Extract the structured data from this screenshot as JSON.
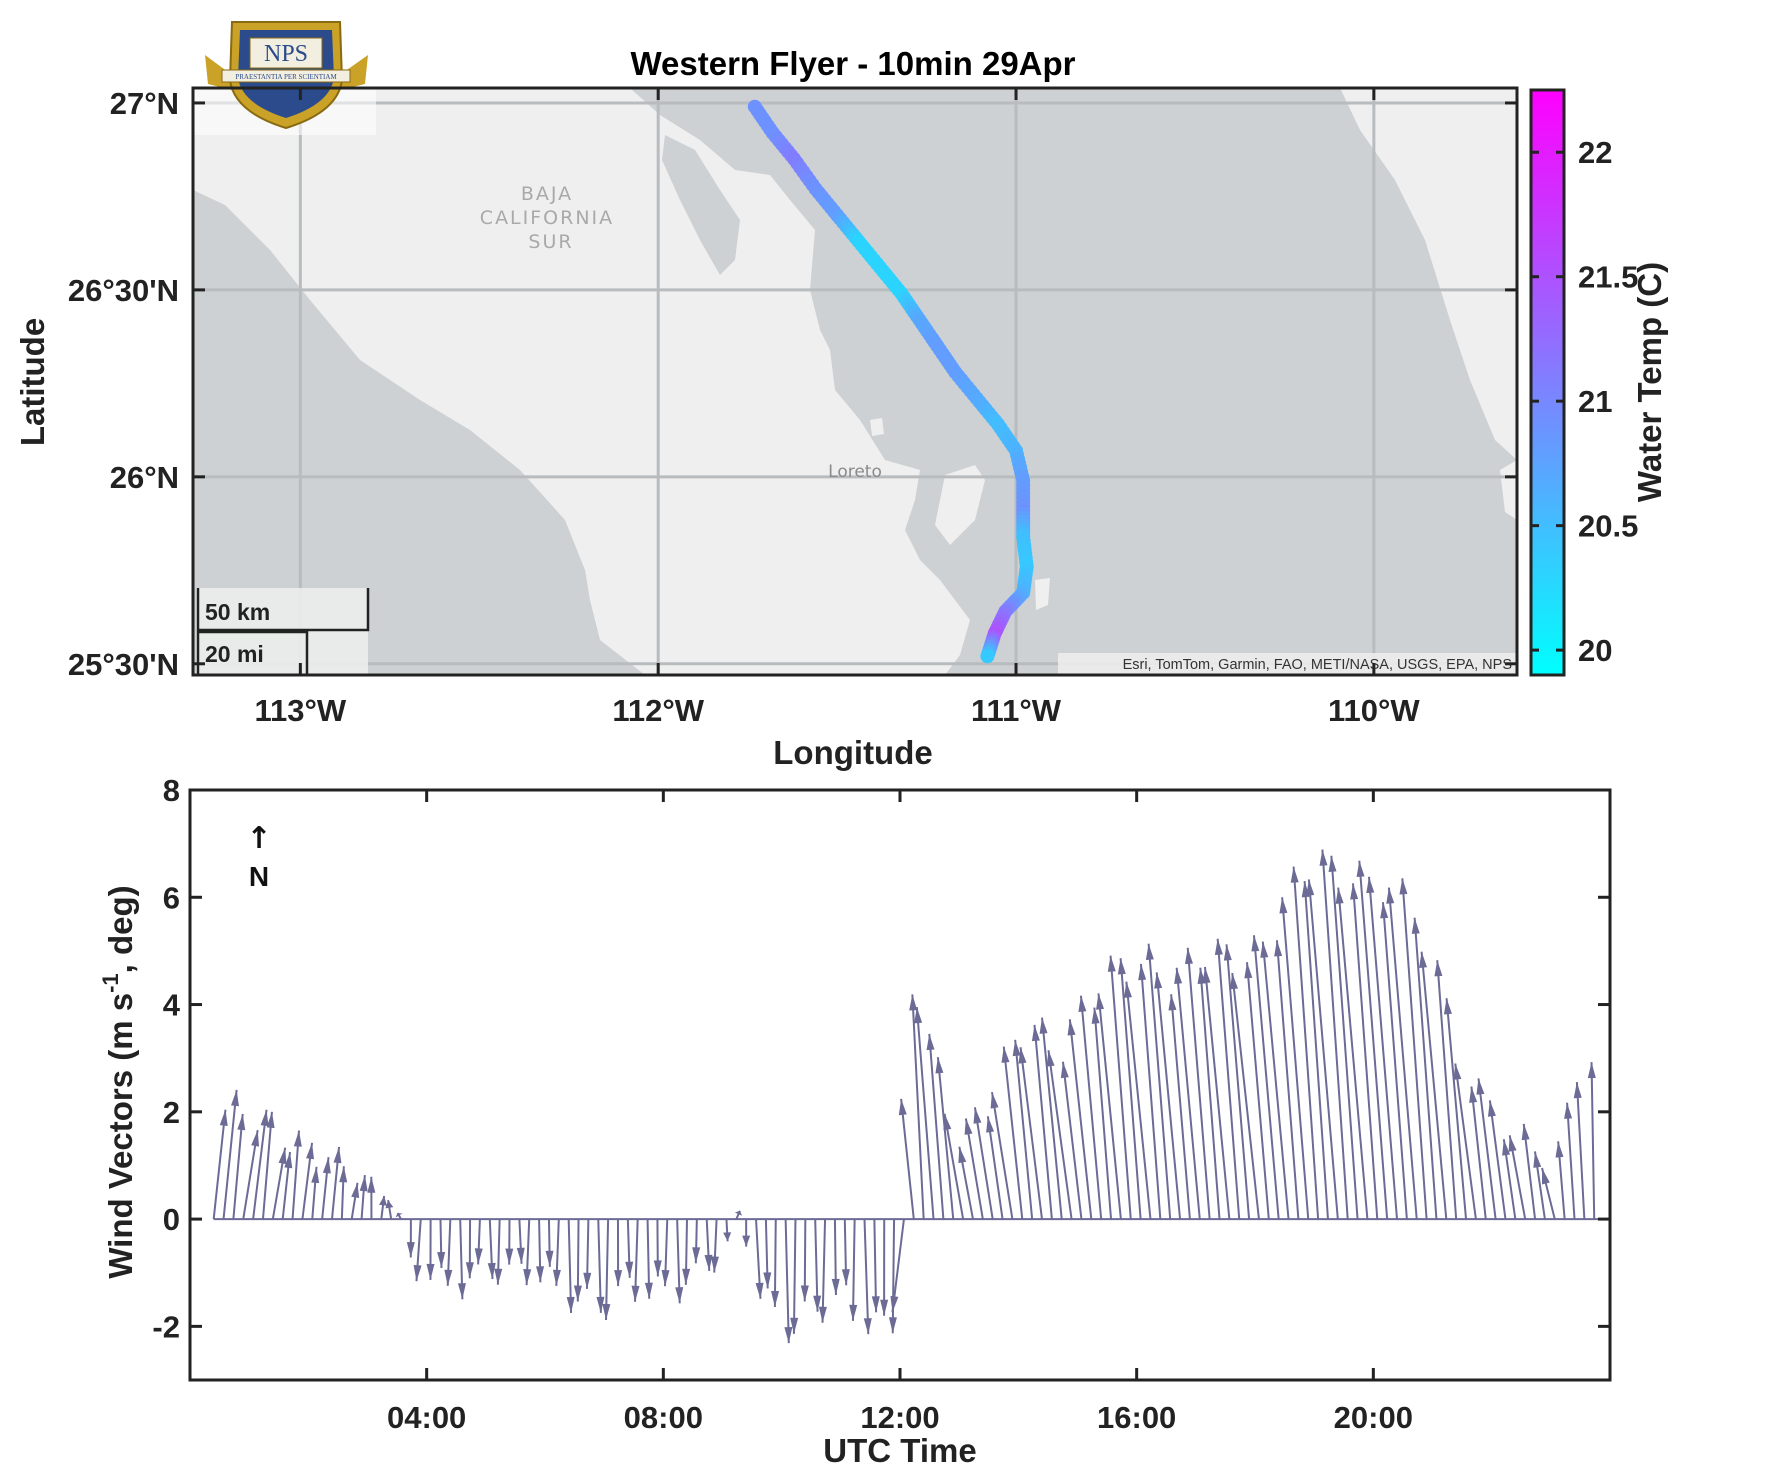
{
  "logo": {
    "text": "NPS",
    "motto": "PRAESTANTIA PER SCIENTIAM"
  },
  "colors": {
    "track_low": "#00FFFF",
    "track_high": "#FF00FF",
    "water": "#cdd1d3",
    "land": "#efefef",
    "wind_vector": "#6b6b96"
  },
  "chart_data": [
    {
      "type": "scatter",
      "title": "Western Flyer - 10min 29Apr",
      "xlabel": "Longitude",
      "ylabel": "Latitude",
      "xlim": [
        -113.3,
        -109.6
      ],
      "ylim": [
        25.47,
        27.04
      ],
      "x_ticks": [
        {
          "value": -113,
          "label": "113°W"
        },
        {
          "value": -112,
          "label": "112°W"
        },
        {
          "value": -111,
          "label": "111°W"
        },
        {
          "value": -110,
          "label": "110°W"
        }
      ],
      "y_ticks": [
        {
          "value": 27,
          "label": "27°N"
        },
        {
          "value": 26.5,
          "label": "26°30'N"
        },
        {
          "value": 26,
          "label": "26°N"
        },
        {
          "value": 25.5,
          "label": "25°30'N"
        }
      ],
      "grid": true,
      "track": [
        {
          "lon": -111.73,
          "lat": 26.99,
          "temp": 20.9
        },
        {
          "lon": -111.68,
          "lat": 26.92,
          "temp": 20.9
        },
        {
          "lon": -111.62,
          "lat": 26.85,
          "temp": 21.1
        },
        {
          "lon": -111.56,
          "lat": 26.77,
          "temp": 20.9
        },
        {
          "lon": -111.5,
          "lat": 26.7,
          "temp": 20.8
        },
        {
          "lon": -111.44,
          "lat": 26.63,
          "temp": 20.3
        },
        {
          "lon": -111.38,
          "lat": 26.56,
          "temp": 20.3
        },
        {
          "lon": -111.32,
          "lat": 26.49,
          "temp": 20.3
        },
        {
          "lon": -111.27,
          "lat": 26.42,
          "temp": 20.7
        },
        {
          "lon": -111.22,
          "lat": 26.35,
          "temp": 20.8
        },
        {
          "lon": -111.17,
          "lat": 26.28,
          "temp": 20.8
        },
        {
          "lon": -111.11,
          "lat": 26.21,
          "temp": 20.7
        },
        {
          "lon": -111.05,
          "lat": 26.14,
          "temp": 20.5
        },
        {
          "lon": -111.0,
          "lat": 26.07,
          "temp": 20.6
        },
        {
          "lon": -110.98,
          "lat": 25.99,
          "temp": 20.8
        },
        {
          "lon": -110.98,
          "lat": 25.91,
          "temp": 20.9
        },
        {
          "lon": -110.98,
          "lat": 25.84,
          "temp": 20.5
        },
        {
          "lon": -110.97,
          "lat": 25.76,
          "temp": 20.4
        },
        {
          "lon": -110.98,
          "lat": 25.69,
          "temp": 20.6
        },
        {
          "lon": -111.03,
          "lat": 25.64,
          "temp": 21.1
        },
        {
          "lon": -111.06,
          "lat": 25.58,
          "temp": 21.5
        },
        {
          "lon": -111.08,
          "lat": 25.52,
          "temp": 20.4
        }
      ],
      "map_labels": {
        "region": [
          "BAJA",
          "CALIFORNIA",
          "SUR"
        ],
        "city": "Loreto",
        "attribution": "Esri, TomTom, Garmin, FAO, METI/NASA, USGS, EPA, NPS"
      },
      "scale_bar": {
        "top": "50 km",
        "bottom": "20 mi"
      },
      "colorbar": {
        "label": "Water Temp (C)",
        "range": [
          19.9,
          22.25
        ],
        "ticks": [
          {
            "value": 20,
            "label": "20"
          },
          {
            "value": 20.5,
            "label": "20.5"
          },
          {
            "value": 21,
            "label": "21"
          },
          {
            "value": 21.5,
            "label": "21.5"
          },
          {
            "value": 22,
            "label": "22"
          }
        ]
      }
    },
    {
      "type": "line",
      "xlabel": "UTC Time",
      "ylabel_main": "Wind Vectors (m s",
      "ylabel_sup": "-1",
      "ylabel_end": ", deg)",
      "xlim": [
        0,
        24
      ],
      "ylim": [
        -3,
        8
      ],
      "x_ticks": [
        {
          "value": 4,
          "label": "04:00"
        },
        {
          "value": 8,
          "label": "08:00"
        },
        {
          "value": 12,
          "label": "12:00"
        },
        {
          "value": 16,
          "label": "16:00"
        },
        {
          "value": 20,
          "label": "20:00"
        }
      ],
      "y_ticks": [
        {
          "value": -2,
          "label": "-2"
        },
        {
          "value": 0,
          "label": "0"
        },
        {
          "value": 2,
          "label": "2"
        },
        {
          "value": 4,
          "label": "4"
        },
        {
          "value": 6,
          "label": "6"
        },
        {
          "value": 8,
          "label": "8"
        }
      ],
      "north_indicator": {
        "arrow": "↑",
        "label": "N"
      },
      "wind_keyframes": [
        [
          0.0,
          0.3,
          2.2
        ],
        [
          0.5,
          0.2,
          2.0
        ],
        [
          1.0,
          0.25,
          1.8
        ],
        [
          1.6,
          0.15,
          1.6
        ],
        [
          2.4,
          0.1,
          1.0
        ],
        [
          3.0,
          0.05,
          0.7
        ],
        [
          3.5,
          -0.05,
          0.5
        ],
        [
          3.7,
          -0.05,
          -0.8
        ],
        [
          4.3,
          0.0,
          -1.4
        ],
        [
          5.0,
          0.0,
          -0.9
        ],
        [
          6.0,
          0.0,
          -1.2
        ],
        [
          7.0,
          0.0,
          -1.6
        ],
        [
          8.0,
          0.0,
          -1.3
        ],
        [
          9.0,
          0.0,
          -0.8
        ],
        [
          9.3,
          0.05,
          0.3
        ],
        [
          9.5,
          0.05,
          -1.2
        ],
        [
          10.2,
          0.0,
          -2.0
        ],
        [
          11.0,
          0.0,
          -1.6
        ],
        [
          11.7,
          0.05,
          -1.9
        ],
        [
          12.1,
          -0.2,
          -1.6
        ],
        [
          12.3,
          -0.25,
          3.5
        ],
        [
          12.5,
          -0.25,
          4.5
        ],
        [
          12.8,
          -0.3,
          3.0
        ],
        [
          13.2,
          -0.3,
          1.8
        ],
        [
          13.5,
          -0.3,
          1.8
        ],
        [
          14.0,
          -0.35,
          2.6
        ],
        [
          14.5,
          -0.35,
          3.7
        ],
        [
          15.0,
          -0.4,
          3.3
        ],
        [
          15.5,
          -0.35,
          4.0
        ],
        [
          16.0,
          -0.4,
          4.6
        ],
        [
          16.5,
          -0.4,
          5.0
        ],
        [
          17.0,
          -0.4,
          4.5
        ],
        [
          17.5,
          -0.4,
          4.8
        ],
        [
          18.0,
          -0.45,
          5.0
        ],
        [
          18.5,
          -0.45,
          5.1
        ],
        [
          19.0,
          -0.45,
          6.0
        ],
        [
          19.5,
          -0.5,
          6.7
        ],
        [
          20.0,
          -0.5,
          6.6
        ],
        [
          20.5,
          -0.5,
          6.2
        ],
        [
          21.0,
          -0.45,
          5.8
        ],
        [
          21.3,
          -0.4,
          5.2
        ],
        [
          21.7,
          -0.35,
          3.4
        ],
        [
          22.0,
          -0.3,
          2.4
        ],
        [
          22.5,
          -0.25,
          1.5
        ],
        [
          23.0,
          -0.2,
          1.3
        ],
        [
          23.3,
          -0.15,
          1.5
        ],
        [
          23.6,
          -0.1,
          3.0
        ],
        [
          23.8,
          -0.1,
          3.2
        ]
      ]
    }
  ]
}
